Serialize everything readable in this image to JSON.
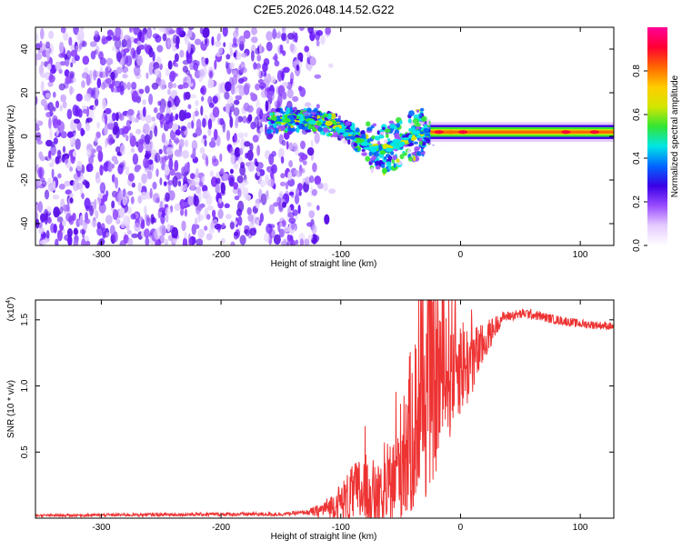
{
  "title": "C2E5.2026.048.14.52.G22",
  "chart_data": [
    {
      "type": "heatmap",
      "xlabel": "Height of straight line (km)",
      "ylabel": "Frequency (Hz)",
      "xlim": [
        -355,
        128
      ],
      "ylim": [
        -50,
        50
      ],
      "xticks": [
        -300,
        -200,
        -100,
        0,
        100
      ],
      "yticks": [
        -40,
        -20,
        0,
        20,
        40
      ],
      "colorbar": {
        "label": "Normalized spectral amplitude",
        "range": [
          0,
          1
        ],
        "ticks": [
          "0.0",
          "0.2",
          "0.4",
          "0.6",
          "0.8"
        ],
        "stops": [
          "#ffffff",
          "#e6ccff",
          "#9a4dff",
          "#3a00e6",
          "#0066ff",
          "#00e6e6",
          "#33e633",
          "#d4e600",
          "#ffcc00",
          "#ff6600",
          "#ff0033",
          "#ff0099"
        ]
      },
      "noise_region_km": [
        -355,
        -130
      ],
      "signal_track": [
        {
          "h": -160,
          "f": 7
        },
        {
          "h": -140,
          "f": 8
        },
        {
          "h": -120,
          "f": 7
        },
        {
          "h": -105,
          "f": 5
        },
        {
          "h": -95,
          "f": 2
        },
        {
          "h": -85,
          "f": -2
        },
        {
          "h": -75,
          "f": -5
        },
        {
          "h": -65,
          "f": -6
        },
        {
          "h": -55,
          "f": -4
        },
        {
          "h": -45,
          "f": -1
        },
        {
          "h": -35,
          "f": 1
        },
        {
          "h": -25,
          "f": 2
        },
        {
          "h": -10,
          "f": 2
        },
        {
          "h": 30,
          "f": 2
        },
        {
          "h": 128,
          "f": 2
        }
      ],
      "carrier_frequency_hz": 2
    },
    {
      "type": "line",
      "xlabel": "Height of straight line (km)",
      "ylabel": "SNR (10 * v/v)",
      "scale_label": "(x10",
      "scale_exponent": "4",
      "scale_suffix": ")",
      "xlim": [
        -355,
        128
      ],
      "ylim": [
        0,
        1.65
      ],
      "xticks": [
        -300,
        -200,
        -100,
        0,
        100
      ],
      "yticks": [
        "0.5",
        "1.0",
        "1.5"
      ],
      "color": "#ee3333",
      "envelope": [
        {
          "h": -355,
          "v": 0.02
        },
        {
          "h": -200,
          "v": 0.03
        },
        {
          "h": -150,
          "v": 0.03
        },
        {
          "h": -120,
          "v": 0.05
        },
        {
          "h": -100,
          "v": 0.12
        },
        {
          "h": -85,
          "v": 0.2
        },
        {
          "h": -75,
          "v": 0.18
        },
        {
          "h": -65,
          "v": 0.1
        },
        {
          "h": -55,
          "v": 0.3
        },
        {
          "h": -45,
          "v": 0.55
        },
        {
          "h": -35,
          "v": 0.8
        },
        {
          "h": -25,
          "v": 1.0
        },
        {
          "h": -15,
          "v": 1.1
        },
        {
          "h": -5,
          "v": 1.2
        },
        {
          "h": 5,
          "v": 1.15
        },
        {
          "h": 15,
          "v": 1.25
        },
        {
          "h": 25,
          "v": 1.4
        },
        {
          "h": 35,
          "v": 1.52
        },
        {
          "h": 55,
          "v": 1.55
        },
        {
          "h": 80,
          "v": 1.5
        },
        {
          "h": 100,
          "v": 1.47
        },
        {
          "h": 128,
          "v": 1.45
        }
      ],
      "noise_amplitude": [
        {
          "h": -355,
          "a": 0.01
        },
        {
          "h": -130,
          "a": 0.015
        },
        {
          "h": -110,
          "a": 0.08
        },
        {
          "h": -80,
          "a": 0.3
        },
        {
          "h": -60,
          "a": 0.25
        },
        {
          "h": -45,
          "a": 0.6
        },
        {
          "h": -30,
          "a": 0.8
        },
        {
          "h": -15,
          "a": 0.7
        },
        {
          "h": 0,
          "a": 0.4
        },
        {
          "h": 20,
          "a": 0.15
        },
        {
          "h": 35,
          "a": 0.04
        },
        {
          "h": 128,
          "a": 0.03
        }
      ]
    }
  ]
}
